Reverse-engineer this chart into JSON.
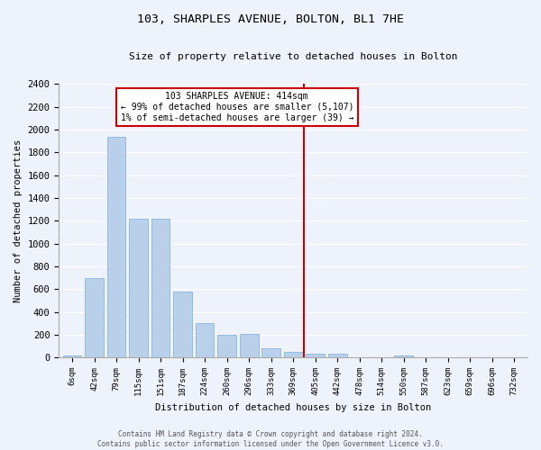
{
  "title": "103, SHARPLES AVENUE, BOLTON, BL1 7HE",
  "subtitle": "Size of property relative to detached houses in Bolton",
  "xlabel": "Distribution of detached houses by size in Bolton",
  "ylabel": "Number of detached properties",
  "bar_color": "#b8d0ea",
  "bar_edge_color": "#7aafd4",
  "background_color": "#eef2fb",
  "grid_color": "#ffffff",
  "vline_color": "#cc0000",
  "annotation_title": "103 SHARPLES AVENUE: 414sqm",
  "annotation_line1": "← 99% of detached houses are smaller (5,107)",
  "annotation_line2": "1% of semi-detached houses are larger (39) →",
  "annotation_box_color": "white",
  "annotation_box_edge": "#cc0000",
  "categories": [
    "6sqm",
    "42sqm",
    "79sqm",
    "115sqm",
    "151sqm",
    "187sqm",
    "224sqm",
    "260sqm",
    "296sqm",
    "333sqm",
    "369sqm",
    "405sqm",
    "442sqm",
    "478sqm",
    "514sqm",
    "550sqm",
    "587sqm",
    "623sqm",
    "659sqm",
    "696sqm",
    "732sqm"
  ],
  "values": [
    15,
    700,
    1940,
    1220,
    1220,
    575,
    305,
    200,
    205,
    80,
    45,
    35,
    30,
    5,
    5,
    20,
    5,
    5,
    5,
    5,
    5
  ],
  "ylim": [
    0,
    2400
  ],
  "yticks": [
    0,
    200,
    400,
    600,
    800,
    1000,
    1200,
    1400,
    1600,
    1800,
    2000,
    2200,
    2400
  ],
  "vline_index": 11,
  "footer_line1": "Contains HM Land Registry data © Crown copyright and database right 2024.",
  "footer_line2": "Contains public sector information licensed under the Open Government Licence v3.0."
}
